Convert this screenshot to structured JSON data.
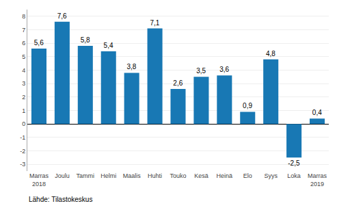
{
  "chart_data": {
    "type": "bar",
    "categories": [
      "Marras\n2018",
      "Joulu",
      "Tammi",
      "Helmi",
      "Maalis",
      "Huhti",
      "Touko",
      "Kesä",
      "Heinä",
      "Elo",
      "Syys",
      "Loka",
      "Marras\n2019"
    ],
    "values": [
      5.6,
      7.6,
      5.8,
      5.4,
      3.8,
      7.1,
      2.6,
      3.5,
      3.6,
      0.9,
      4.8,
      -2.5,
      0.4
    ],
    "value_labels": [
      "5,6",
      "7,6",
      "5,8",
      "5,4",
      "3,8",
      "7,1",
      "2,6",
      "3,5",
      "3,6",
      "0,9",
      "4,8",
      "-2,5",
      "0,4"
    ],
    "data_labels": true,
    "color": "#1878B4",
    "ylim": [
      -3.5,
      8.5
    ],
    "yticks": [
      -3,
      -2,
      -1,
      0,
      1,
      2,
      3,
      4,
      5,
      6,
      7,
      8
    ],
    "grid": true,
    "annotations": [
      "Lähde: Tilastokeskus"
    ]
  }
}
